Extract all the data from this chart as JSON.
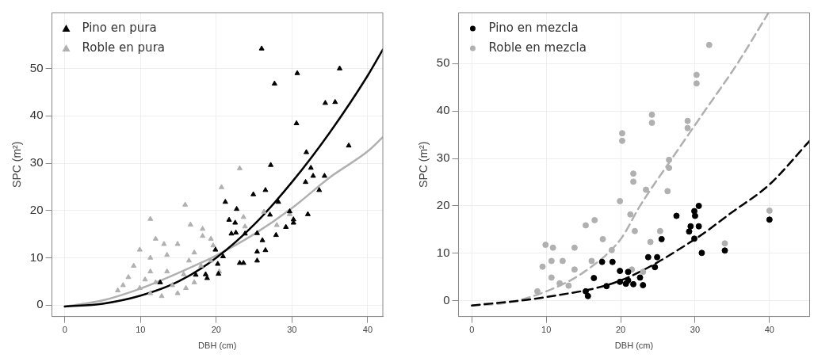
{
  "chart_data": [
    {
      "type": "scatter",
      "xlabel": "DBH (cm)",
      "ylabel": "SPC (m²)",
      "xlim": [
        -1.7,
        42
      ],
      "ylim": [
        -2.4,
        61.8
      ],
      "xticks": [
        0,
        10,
        20,
        30,
        40
      ],
      "yticks": [
        0,
        10,
        20,
        30,
        40,
        50
      ],
      "grid": true,
      "legend": "top left",
      "series": [
        {
          "name": "Pino en pura",
          "color": "#000000",
          "marker": "triangle",
          "x": [
            26.0,
            30.7,
            36.3,
            27.7,
            34.4,
            35.7,
            30.6,
            37.5,
            31.9,
            27.2,
            32.5,
            32.8,
            34.3,
            31.8,
            26.5,
            24.9,
            33.6,
            21.2,
            28.2,
            22.7,
            29.7,
            27.1,
            32.1,
            21.7,
            22.5,
            30.2,
            30.2,
            29.2,
            22.0,
            22.6,
            25.4,
            23.8,
            27.9,
            26.1,
            26.5,
            25.4,
            19.9,
            20.9,
            25.4,
            23.1,
            23.6,
            20.2,
            20.3,
            17.3,
            18.6,
            18.8,
            12.6
          ],
          "values": [
            54.2,
            49.0,
            50.0,
            46.8,
            42.7,
            42.9,
            38.4,
            33.7,
            32.3,
            29.6,
            29.0,
            27.3,
            27.3,
            26.0,
            24.3,
            23.4,
            24.3,
            21.8,
            21.8,
            20.3,
            19.8,
            19.1,
            19.2,
            18.0,
            17.4,
            18.1,
            17.4,
            16.5,
            15.1,
            15.3,
            15.2,
            15.1,
            14.8,
            13.7,
            11.6,
            11.3,
            11.7,
            10.3,
            9.4,
            8.9,
            8.9,
            8.7,
            6.6,
            6.4,
            6.5,
            5.7,
            4.8
          ]
        },
        {
          "name": "Roble en pura",
          "color": "#b0b0b0",
          "marker": "triangle",
          "x": [
            11.3,
            15.9,
            16.6,
            20.7,
            23.1,
            23.8,
            23.6,
            19.6,
            18.2,
            18.2,
            26.3,
            29.7,
            28.0,
            9.9,
            12.0,
            13.1,
            14.9,
            16.4,
            18.0,
            13.5,
            11.3,
            8.4,
            7.7,
            7.0,
            9.9,
            11.3,
            12.8,
            14.9,
            16.0,
            17.1,
            14.2,
            12.0,
            10.6,
            9.1,
            17.1,
            19.3,
            20.4,
            15.7,
            11.3,
            13.5,
            19.3
          ],
          "values": [
            18.2,
            21.2,
            17.0,
            24.9,
            28.9,
            16.6,
            18.6,
            12.6,
            14.6,
            16.1,
            19.7,
            19.2,
            16.9,
            11.7,
            14.0,
            12.9,
            12.9,
            9.4,
            8.3,
            7.1,
            7.1,
            5.9,
            4.2,
            3.1,
            3.6,
            2.5,
            1.9,
            2.5,
            3.6,
            4.8,
            4.2,
            4.8,
            5.4,
            8.3,
            11.1,
            9.4,
            7.1,
            6.5,
            10.0,
            10.6,
            14.0
          ]
        },
        {
          "type": "line",
          "color": "#000000",
          "marker": "none",
          "line_style": "solid",
          "x": [
            0,
            5,
            10,
            15,
            20,
            25,
            30,
            35,
            40,
            42
          ],
          "values": [
            -0.3,
            0.3,
            2,
            5,
            10,
            17,
            26,
            36.5,
            48.5,
            54
          ]
        },
        {
          "type": "line",
          "color": "#b0b0b0",
          "marker": "none",
          "line_style": "solid",
          "x": [
            0,
            5,
            10,
            15,
            20,
            25,
            30,
            35,
            40,
            42
          ],
          "values": [
            -0.3,
            1,
            3.5,
            6.8,
            10.5,
            15,
            20.5,
            27,
            32.5,
            35.5
          ]
        }
      ]
    },
    {
      "type": "scatter",
      "xlabel": "DBH (cm)",
      "ylabel": "SPC (m²)",
      "xlim": [
        -1.8,
        45.4
      ],
      "ylim": [
        -3.3,
        60.7
      ],
      "xticks": [
        0,
        10,
        20,
        30,
        40
      ],
      "yticks": [
        0,
        10,
        20,
        30,
        40,
        50
      ],
      "grid": true,
      "legend": "top left",
      "series": [
        {
          "name": "Pino en mezcla",
          "color": "#000000",
          "marker": "circle",
          "x": [
            40.0,
            34.0,
            30.9,
            30.5,
            29.9,
            30.0,
            27.5,
            29.4,
            30.5,
            29.2,
            29.9,
            25.5,
            23.7,
            24.9,
            24.6,
            18.9,
            17.5,
            21.0,
            19.9,
            21.0,
            19.9,
            20.7,
            21.7,
            22.6,
            23.0,
            18.1,
            16.4,
            15.3,
            15.6
          ],
          "values": [
            17.1,
            10.6,
            10.1,
            20.0,
            18.9,
            17.9,
            17.9,
            15.7,
            15.7,
            14.6,
            13.1,
            13.0,
            9.2,
            9.2,
            7.1,
            8.2,
            8.2,
            6.1,
            6.3,
            4.3,
            4.0,
            3.6,
            3.5,
            4.9,
            3.3,
            3.1,
            4.8,
            2.0,
            1.0
          ]
        },
        {
          "name": "Roble en mezcla",
          "color": "#b0b0b0",
          "marker": "circle",
          "x": [
            31.9,
            30.2,
            30.2,
            24.2,
            24.2,
            29.0,
            29.0,
            20.2,
            20.2,
            26.5,
            26.5,
            26.3,
            21.7,
            21.7,
            23.4,
            19.9,
            21.3,
            21.9,
            24.0,
            25.3,
            16.5,
            15.3,
            9.9,
            10.9,
            9.5,
            10.7,
            11.8,
            13.0,
            13.8,
            16.1,
            17.6,
            18.8,
            13.8,
            12.2,
            10.7,
            40.0,
            34.0,
            23.0,
            21.5,
            8.8
          ],
          "values": [
            53.9,
            45.8,
            47.6,
            37.5,
            39.2,
            36.4,
            37.9,
            33.7,
            35.3,
            28.0,
            29.7,
            23.1,
            26.8,
            25.1,
            23.4,
            21.0,
            18.2,
            14.7,
            12.4,
            14.7,
            17.0,
            15.9,
            11.8,
            11.2,
            7.2,
            4.9,
            3.7,
            3.2,
            6.6,
            8.4,
            13.0,
            10.7,
            11.2,
            8.4,
            8.4,
            19.0,
            12.1,
            6.1,
            6.6,
            2.0
          ]
        },
        {
          "type": "line",
          "color": "#000000",
          "marker": "none",
          "line_style": "dashed",
          "x": [
            0,
            10,
            20,
            30,
            35,
            40,
            45.4
          ],
          "values": [
            -1,
            0.8,
            4.3,
            13,
            18.7,
            24.5,
            33.7
          ]
        },
        {
          "type": "line",
          "color": "#b0b0b0",
          "marker": "none",
          "line_style": "dashed",
          "x": [
            0,
            5,
            10,
            15,
            20,
            22.6,
            26.9,
            31.3,
            35.7,
            39.8
          ],
          "values": [
            -1,
            -0.3,
            2,
            6,
            13,
            20,
            30,
            40,
            50,
            60.5
          ]
        }
      ]
    }
  ]
}
